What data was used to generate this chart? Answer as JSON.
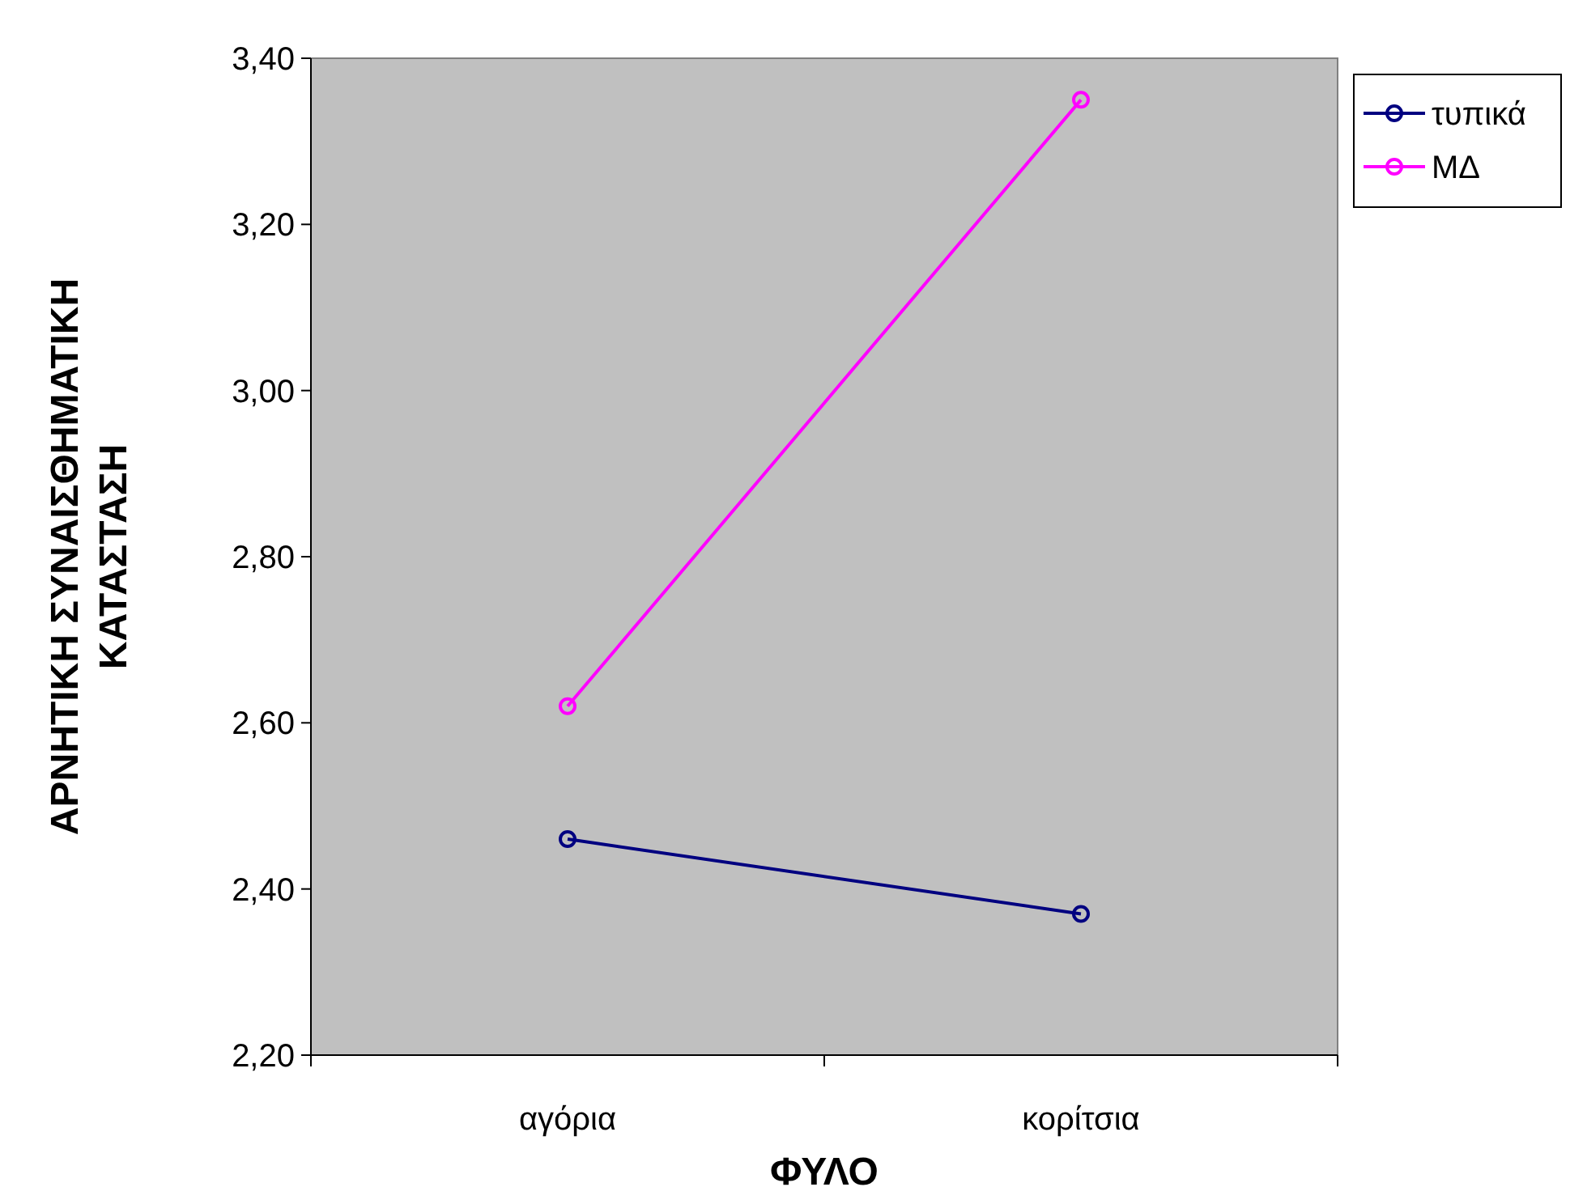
{
  "chart_data": {
    "type": "line",
    "xlabel": "ΦΥΛΟ",
    "ylabel": "ΑΡΝΗΤΙΚΗ ΣΥΝΑΙΣΘΗΜΑΤΙΚΗ\nΚΑΤΑΣΤΑΣΗ",
    "categories": [
      "αγόρια",
      "κορίτσια"
    ],
    "series": [
      {
        "name": "τυπικά",
        "color": "#000080",
        "values": [
          2.46,
          2.37
        ]
      },
      {
        "name": "ΜΔ",
        "color": "#ff00ff",
        "values": [
          2.62,
          3.35
        ]
      }
    ],
    "ylim": [
      2.2,
      3.4
    ],
    "yticks": [
      {
        "value": 2.2,
        "label": "2,20"
      },
      {
        "value": 2.4,
        "label": "2,40"
      },
      {
        "value": 2.6,
        "label": "2,60"
      },
      {
        "value": 2.8,
        "label": "2,80"
      },
      {
        "value": 3.0,
        "label": "3,00"
      },
      {
        "value": 3.2,
        "label": "3,20"
      },
      {
        "value": 3.4,
        "label": "3,40"
      }
    ],
    "grid": false,
    "legend": "top right",
    "marker": "circle",
    "line_style": "solid"
  }
}
